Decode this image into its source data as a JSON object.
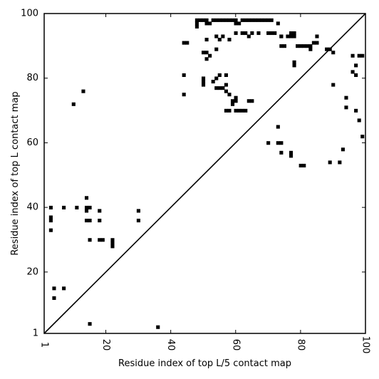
{
  "chart_data": {
    "type": "heatmap",
    "title": "",
    "xlabel": "Residue index of top L/5 contact map",
    "ylabel": "Residue index of top L contact map",
    "xlim": [
      1,
      100
    ],
    "ylim": [
      1,
      100
    ],
    "xticks": [
      "1",
      "20",
      "40",
      "60",
      "80",
      "100"
    ],
    "yticks": [
      "1",
      "20",
      "40",
      "60",
      "80",
      "100"
    ],
    "diagonal": true,
    "color": "#000000",
    "upper_contacts": [
      [
        48,
        98
      ],
      [
        48,
        96
      ],
      [
        48,
        97
      ],
      [
        49,
        98
      ],
      [
        50,
        98
      ],
      [
        51,
        98
      ],
      [
        51,
        97
      ],
      [
        52,
        97
      ],
      [
        53,
        98
      ],
      [
        54,
        98
      ],
      [
        55,
        98
      ],
      [
        56,
        98
      ],
      [
        57,
        98
      ],
      [
        58,
        98
      ],
      [
        59,
        98
      ],
      [
        60,
        97
      ],
      [
        61,
        97
      ],
      [
        60,
        98
      ],
      [
        62,
        98
      ],
      [
        63,
        98
      ],
      [
        64,
        98
      ],
      [
        65,
        98
      ],
      [
        66,
        98
      ],
      [
        67,
        98
      ],
      [
        68,
        98
      ],
      [
        69,
        98
      ],
      [
        70,
        98
      ],
      [
        71,
        98
      ],
      [
        73,
        97
      ],
      [
        74,
        93
      ],
      [
        76,
        93
      ],
      [
        77,
        94
      ],
      [
        78,
        94
      ],
      [
        54,
        93
      ],
      [
        55,
        92
      ],
      [
        56,
        93
      ],
      [
        58,
        92
      ],
      [
        60,
        94
      ],
      [
        62,
        94
      ],
      [
        63,
        94
      ],
      [
        64,
        93
      ],
      [
        65,
        94
      ],
      [
        67,
        94
      ],
      [
        70,
        94
      ],
      [
        71,
        94
      ],
      [
        72,
        94
      ],
      [
        74,
        93
      ],
      [
        77,
        93
      ],
      [
        78,
        93
      ],
      [
        80,
        90
      ],
      [
        82,
        90
      ],
      [
        84,
        91
      ],
      [
        85,
        91
      ],
      [
        88,
        89
      ],
      [
        89,
        89
      ],
      [
        90,
        88
      ],
      [
        96,
        87
      ],
      [
        98,
        87
      ],
      [
        99,
        87
      ],
      [
        97,
        84
      ],
      [
        96,
        82
      ],
      [
        97,
        81
      ],
      [
        44,
        91
      ],
      [
        45,
        91
      ],
      [
        51,
        92
      ],
      [
        54,
        89
      ],
      [
        50,
        88
      ],
      [
        51,
        88
      ],
      [
        52,
        87
      ],
      [
        51,
        86
      ],
      [
        50,
        80
      ],
      [
        50,
        79
      ],
      [
        50,
        78
      ],
      [
        54,
        80
      ],
      [
        53,
        79
      ],
      [
        55,
        81
      ],
      [
        54,
        77
      ],
      [
        55,
        77
      ],
      [
        56,
        77
      ],
      [
        57,
        78
      ],
      [
        57,
        81
      ],
      [
        57,
        76
      ],
      [
        58,
        75
      ],
      [
        59,
        73
      ],
      [
        60,
        74
      ],
      [
        60,
        73
      ],
      [
        59,
        72
      ],
      [
        58,
        70
      ],
      [
        60,
        70
      ],
      [
        61,
        70
      ],
      [
        62,
        70
      ],
      [
        63,
        70
      ],
      [
        64,
        73
      ],
      [
        65,
        73
      ],
      [
        44,
        75
      ],
      [
        44,
        81
      ],
      [
        57,
        70
      ],
      [
        74,
        90
      ],
      [
        75,
        90
      ],
      [
        78,
        84
      ],
      [
        78,
        85
      ],
      [
        79,
        90
      ],
      [
        81,
        90
      ],
      [
        83,
        90
      ],
      [
        83,
        89
      ],
      [
        85,
        93
      ],
      [
        73,
        65
      ],
      [
        70,
        60
      ],
      [
        73,
        60
      ],
      [
        74,
        60
      ],
      [
        74,
        57
      ],
      [
        77,
        56
      ],
      [
        77,
        57
      ],
      [
        80,
        53
      ],
      [
        81,
        53
      ],
      [
        89,
        54
      ],
      [
        92,
        54
      ],
      [
        93,
        58
      ],
      [
        90,
        78
      ],
      [
        94,
        74
      ],
      [
        94,
        71
      ],
      [
        97,
        70
      ],
      [
        98,
        67
      ],
      [
        99,
        62
      ]
    ],
    "lower_contacts": [
      [
        3,
        40
      ],
      [
        3,
        37
      ],
      [
        3,
        36
      ],
      [
        3,
        33
      ],
      [
        7,
        40
      ],
      [
        11,
        40
      ],
      [
        14,
        43
      ],
      [
        14,
        40
      ],
      [
        15,
        40
      ],
      [
        14,
        39
      ],
      [
        14,
        36
      ],
      [
        15,
        36
      ],
      [
        15,
        30
      ],
      [
        18,
        39
      ],
      [
        18,
        36
      ],
      [
        18,
        30
      ],
      [
        19,
        30
      ],
      [
        22,
        30
      ],
      [
        22,
        29
      ],
      [
        22,
        28
      ],
      [
        30,
        39
      ],
      [
        30,
        36
      ],
      [
        4,
        15
      ],
      [
        7,
        15
      ],
      [
        4,
        12
      ],
      [
        13,
        76
      ],
      [
        10,
        72
      ],
      [
        15,
        4
      ],
      [
        36,
        3
      ]
    ]
  }
}
